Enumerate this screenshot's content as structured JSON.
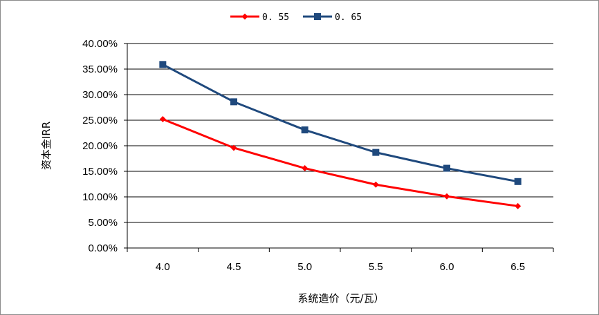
{
  "chart_data": {
    "type": "line",
    "title": "",
    "xlabel": "系统造价（元/瓦）",
    "ylabel": "资本金IRR",
    "categories": [
      "4.0",
      "4.5",
      "5.0",
      "5.5",
      "6.0",
      "6.5"
    ],
    "ylim": [
      0,
      40
    ],
    "y_ticks": [
      "0.00%",
      "5.00%",
      "10.00%",
      "15.00%",
      "20.00%",
      "25.00%",
      "30.00%",
      "35.00%",
      "40.00%"
    ],
    "grid": true,
    "legend_position": "top",
    "series": [
      {
        "name": "0. 55",
        "color": "#ff0000",
        "marker": "diamond",
        "values": [
          25.2,
          19.6,
          15.6,
          12.4,
          10.1,
          8.2
        ]
      },
      {
        "name": "0. 65",
        "color": "#1f497d",
        "marker": "square",
        "values": [
          35.9,
          28.6,
          23.1,
          18.7,
          15.6,
          13.0
        ]
      }
    ]
  }
}
